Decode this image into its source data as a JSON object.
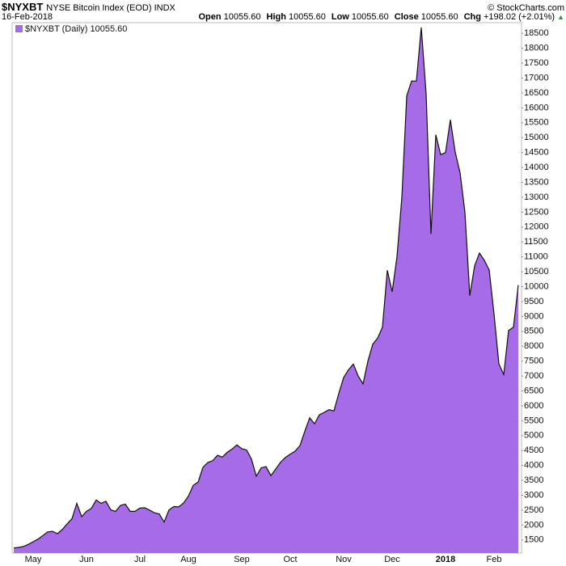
{
  "header": {
    "symbol": "$NYXBT",
    "name": "NYSE Bitcoin Index (EOD) INDX",
    "copyright": "© StockCharts.com",
    "date": "16-Feb-2018",
    "quote": [
      {
        "label": "Open",
        "value": "10055.60"
      },
      {
        "label": "High",
        "value": "10055.60"
      },
      {
        "label": "Low",
        "value": "10055.60"
      },
      {
        "label": "Close",
        "value": "10055.60"
      },
      {
        "label": "Chg",
        "value": "+198.02 (+2.01%)"
      }
    ]
  },
  "chart_data": {
    "type": "area",
    "categories": [
      null,
      null,
      null,
      null,
      "May",
      null,
      null,
      null,
      null,
      null,
      null,
      null,
      null,
      null,
      null,
      "Jun",
      null,
      null,
      null,
      null,
      null,
      null,
      null,
      null,
      null,
      null,
      "Jul",
      null,
      null,
      null,
      null,
      null,
      null,
      null,
      null,
      null,
      "Aug",
      null,
      null,
      null,
      null,
      null,
      null,
      null,
      null,
      null,
      null,
      "Sep",
      null,
      null,
      null,
      null,
      null,
      null,
      null,
      null,
      null,
      "Oct",
      null,
      null,
      null,
      null,
      null,
      null,
      null,
      null,
      null,
      null,
      "Nov",
      null,
      null,
      null,
      null,
      null,
      null,
      null,
      null,
      null,
      "Dec",
      null,
      null,
      null,
      null,
      null,
      null,
      null,
      null,
      null,
      null,
      "2018",
      null,
      null,
      null,
      null,
      null,
      null,
      null,
      null,
      null,
      "Feb",
      null,
      null,
      null,
      null,
      null
    ],
    "series": [
      {
        "name": "$NYXBT (Daily) 10055.60",
        "color": "#a66ce8",
        "line_color": "#111111",
        "values": [
          1230,
          1250,
          1280,
          1350,
          1440,
          1530,
          1650,
          1770,
          1790,
          1710,
          1850,
          2040,
          2210,
          2730,
          2280,
          2460,
          2560,
          2840,
          2730,
          2800,
          2510,
          2460,
          2660,
          2700,
          2460,
          2460,
          2570,
          2580,
          2500,
          2410,
          2370,
          2100,
          2510,
          2620,
          2610,
          2740,
          2970,
          3330,
          3440,
          3940,
          4100,
          4160,
          4340,
          4280,
          4440,
          4550,
          4690,
          4560,
          4520,
          4210,
          3640,
          3920,
          3960,
          3660,
          3880,
          4110,
          4270,
          4380,
          4480,
          4670,
          5150,
          5600,
          5400,
          5700,
          5780,
          5870,
          5830,
          6420,
          6950,
          7210,
          7400,
          7000,
          6740,
          7500,
          8070,
          8270,
          8640,
          10550,
          9830,
          11010,
          13000,
          16400,
          16900,
          16900,
          18700,
          16470,
          11770,
          15100,
          14430,
          14500,
          15600,
          14510,
          13820,
          12500,
          9700,
          10700,
          11130,
          10880,
          10560,
          9080,
          7410,
          7050,
          8530,
          8640,
          10055.6
        ]
      }
    ],
    "ylim": [
      1060,
      18860
    ],
    "yticks": [
      1500,
      2000,
      2500,
      3000,
      3500,
      4000,
      4500,
      5000,
      5500,
      6000,
      6500,
      7000,
      7500,
      8000,
      8500,
      9000,
      9500,
      10000,
      10500,
      11000,
      11500,
      12000,
      12500,
      13000,
      13500,
      14000,
      14500,
      15000,
      15500,
      16000,
      16500,
      17000,
      17500,
      18000,
      18500
    ],
    "y_axis_side": "right",
    "grid": false
  }
}
